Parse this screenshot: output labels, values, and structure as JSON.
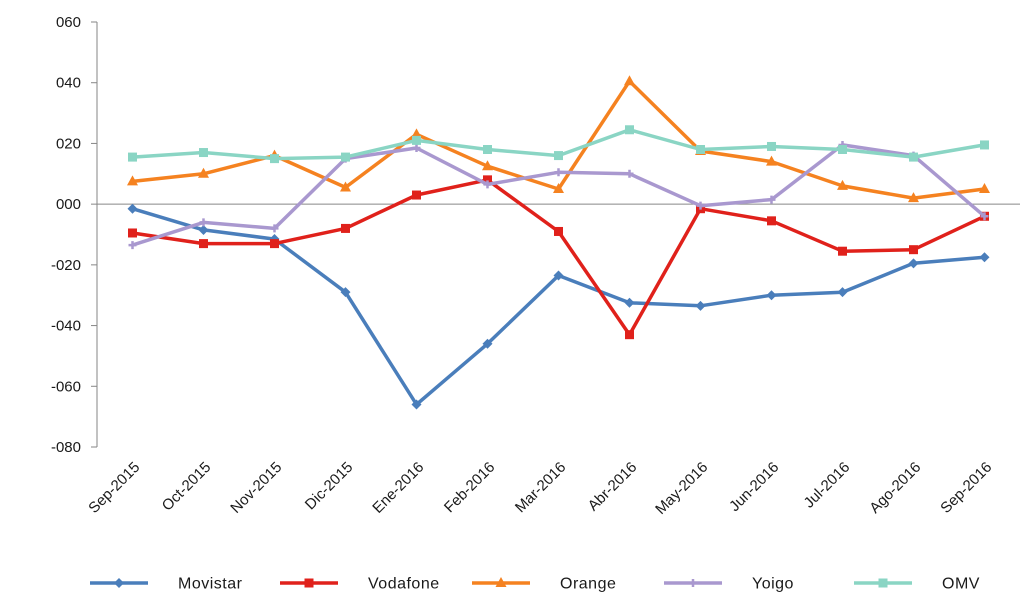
{
  "chart_data": {
    "type": "line",
    "title": "",
    "xlabel": "",
    "ylabel": "",
    "categories": [
      "Sep-2015",
      "Oct-2015",
      "Nov-2015",
      "Dic-2015",
      "Ene-2016",
      "Feb-2016",
      "Mar-2016",
      "Abr-2016",
      "May-2016",
      "Jun-2016",
      "Jul-2016",
      "Ago-2016",
      "Sep-2016"
    ],
    "ylim": [
      -80,
      60
    ],
    "y_ticks": [
      60,
      40,
      20,
      0,
      -20,
      -40,
      -60,
      -80
    ],
    "y_tick_labels": [
      "060",
      "040",
      "020",
      "000",
      "-020",
      "-040",
      "-060",
      "-080"
    ],
    "grid": false,
    "legend_position": "bottom",
    "series": [
      {
        "name": "Movistar",
        "color": "#4A7EBB",
        "marker": "diamond",
        "values": [
          -1.5,
          -8.5,
          -11.5,
          -29,
          -66,
          -46,
          -23.5,
          -32.5,
          -33.5,
          -30,
          -29,
          -19.5,
          -17.5
        ]
      },
      {
        "name": "Vodafone",
        "color": "#E0211B",
        "marker": "square",
        "values": [
          -9.5,
          -13,
          -13,
          -8,
          3,
          8,
          -9,
          -43,
          -1.5,
          -5.5,
          -15.5,
          -15,
          -4
        ]
      },
      {
        "name": "Orange",
        "color": "#F58220",
        "marker": "triangle",
        "values": [
          7.5,
          10,
          16,
          5.5,
          23,
          12.5,
          5,
          40.5,
          17.5,
          14,
          6,
          2,
          5
        ]
      },
      {
        "name": "Yoigo",
        "color": "#A998CF",
        "marker": "plus",
        "values": [
          -13.5,
          -6,
          -8,
          15,
          18.5,
          6.5,
          10.5,
          10,
          -0.5,
          1.5,
          19.5,
          16,
          -4
        ]
      },
      {
        "name": "OMV",
        "color": "#8AD5C4",
        "marker": "square",
        "values": [
          15.5,
          17,
          15,
          15.5,
          21,
          18,
          16,
          24.5,
          18,
          19,
          18,
          15.5,
          19.5
        ]
      }
    ]
  }
}
